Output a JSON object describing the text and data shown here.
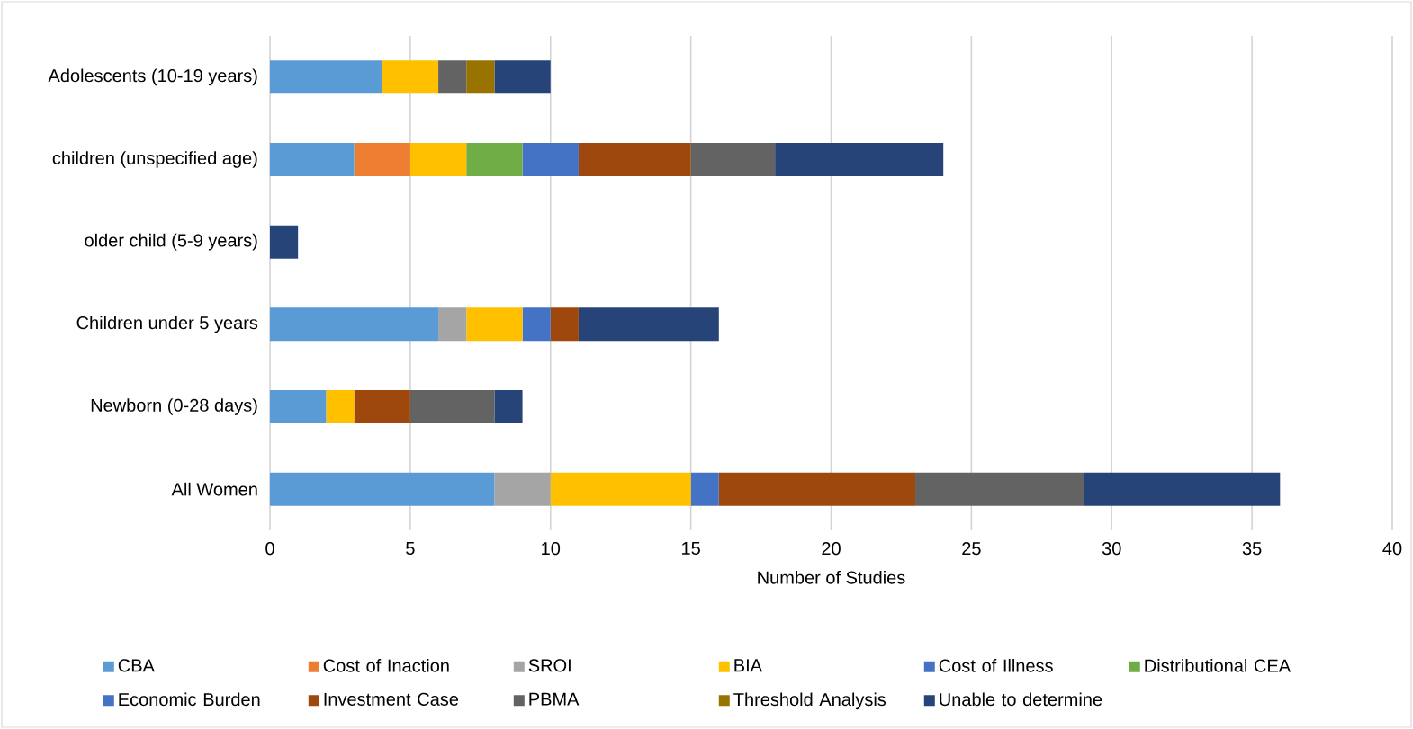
{
  "chart_data": {
    "type": "bar",
    "orientation": "horizontal",
    "stacked": true,
    "categories": [
      "Adolescents (10-19 years)",
      "children (unspecified age)",
      "older child (5-9 years)",
      "Children under 5 years",
      "Newborn (0-28 days)",
      "All Women"
    ],
    "series": [
      {
        "name": "CBA",
        "color": "#5b9bd5",
        "values": [
          4,
          3,
          0,
          6,
          2,
          8
        ]
      },
      {
        "name": "Cost of Inaction",
        "color": "#ed7d31",
        "values": [
          0,
          2,
          0,
          0,
          0,
          0
        ]
      },
      {
        "name": "SROI",
        "color": "#a5a5a5",
        "values": [
          0,
          0,
          0,
          1,
          0,
          2
        ]
      },
      {
        "name": "BIA",
        "color": "#ffc000",
        "values": [
          2,
          2,
          0,
          2,
          1,
          5
        ]
      },
      {
        "name": "Cost of Illness",
        "color": "#4472c4",
        "values": [
          0,
          0,
          0,
          0,
          0,
          0
        ]
      },
      {
        "name": "Distributional CEA",
        "color": "#70ad47",
        "values": [
          0,
          2,
          0,
          0,
          0,
          0
        ]
      },
      {
        "name": "Economic Burden",
        "color": "#4472c4",
        "values": [
          0,
          2,
          0,
          1,
          0,
          1
        ]
      },
      {
        "name": "Investment Case",
        "color": "#9e480e",
        "values": [
          0,
          4,
          0,
          1,
          2,
          7
        ]
      },
      {
        "name": "PBMA",
        "color": "#636363",
        "values": [
          1,
          3,
          0,
          0,
          3,
          6
        ]
      },
      {
        "name": "Threshold Analysis",
        "color": "#997300",
        "values": [
          1,
          0,
          0,
          0,
          0,
          0
        ]
      },
      {
        "name": "Unable to determine",
        "color": "#264478",
        "values": [
          2,
          6,
          1,
          5,
          1,
          7
        ]
      }
    ],
    "xlabel": "Number of Studies",
    "xlim": [
      0,
      40
    ],
    "xticks": [
      0,
      5,
      10,
      15,
      20,
      25,
      30,
      35,
      40
    ],
    "grid": "x",
    "legend": "bottom"
  }
}
